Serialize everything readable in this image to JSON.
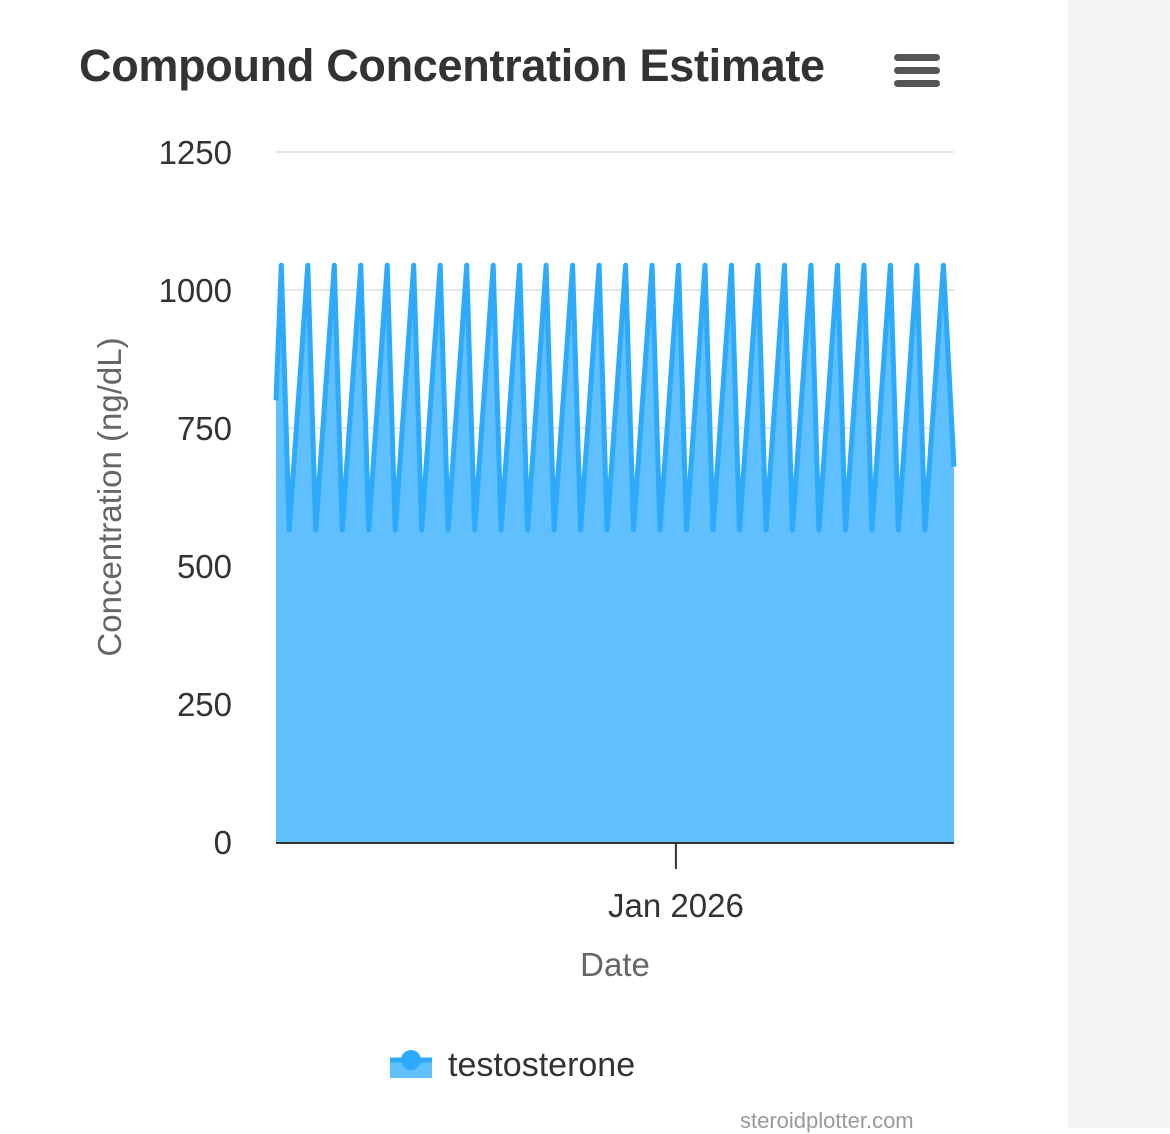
{
  "chart_data": {
    "type": "area",
    "title": "Compound Concentration Estimate",
    "xlabel": "Date",
    "ylabel": "Concentration (ng/dL)",
    "ylim": [
      0,
      1250
    ],
    "yticks": [
      0,
      250,
      500,
      750,
      1000,
      1250
    ],
    "xticks": [
      {
        "label": "Jan 2026",
        "position": 15.1
      }
    ],
    "x_domain": [
      0,
      25.6
    ],
    "grid": true,
    "legend_position": "bottom",
    "colors": {
      "fill": "#5fc0fd",
      "line": "#2eaafc",
      "grid": "#e6e6e6",
      "axis": "#333333"
    },
    "series": [
      {
        "name": "testosterone",
        "peak": 1045,
        "trough": 565,
        "points": [
          [
            0,
            800
          ],
          [
            0.2,
            1045
          ],
          [
            0.5,
            565
          ],
          [
            1.2,
            1045
          ],
          [
            1.5,
            565
          ],
          [
            2.2,
            1045
          ],
          [
            2.5,
            565
          ],
          [
            3.2,
            1045
          ],
          [
            3.5,
            565
          ],
          [
            4.2,
            1045
          ],
          [
            4.5,
            565
          ],
          [
            5.2,
            1045
          ],
          [
            5.5,
            565
          ],
          [
            6.2,
            1045
          ],
          [
            6.5,
            565
          ],
          [
            7.2,
            1045
          ],
          [
            7.5,
            565
          ],
          [
            8.2,
            1045
          ],
          [
            8.5,
            565
          ],
          [
            9.2,
            1045
          ],
          [
            9.5,
            565
          ],
          [
            10.2,
            1045
          ],
          [
            10.5,
            565
          ],
          [
            11.2,
            1045
          ],
          [
            11.5,
            565
          ],
          [
            12.2,
            1045
          ],
          [
            12.5,
            565
          ],
          [
            13.2,
            1045
          ],
          [
            13.5,
            565
          ],
          [
            14.2,
            1045
          ],
          [
            14.5,
            565
          ],
          [
            15.2,
            1045
          ],
          [
            15.5,
            565
          ],
          [
            16.2,
            1045
          ],
          [
            16.5,
            565
          ],
          [
            17.2,
            1045
          ],
          [
            17.5,
            565
          ],
          [
            18.2,
            1045
          ],
          [
            18.5,
            565
          ],
          [
            19.2,
            1045
          ],
          [
            19.5,
            565
          ],
          [
            20.2,
            1045
          ],
          [
            20.5,
            565
          ],
          [
            21.2,
            1045
          ],
          [
            21.5,
            565
          ],
          [
            22.2,
            1045
          ],
          [
            22.5,
            565
          ],
          [
            23.2,
            1045
          ],
          [
            23.5,
            565
          ],
          [
            24.2,
            1045
          ],
          [
            24.5,
            565
          ],
          [
            25.2,
            1045
          ],
          [
            25.6,
            680
          ]
        ]
      }
    ]
  },
  "credits": "steroidplotter.com"
}
